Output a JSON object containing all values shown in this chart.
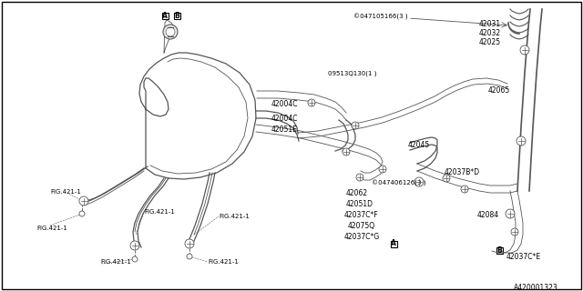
{
  "bg_color": "#ffffff",
  "border_color": "#000000",
  "line_color": "#555555",
  "fig_width": 6.4,
  "fig_height": 3.2,
  "dpi": 100,
  "diagram_id": "A420001323",
  "labels": {
    "part_42031": "42031",
    "part_42032": "42032",
    "part_42025": "42025",
    "part_42065": "42065",
    "part_047105166": "©047105166(3 )",
    "part_09513Q130": "09513Q130(1 )",
    "part_42004C_1": "42004C",
    "part_42004C_2": "42004C",
    "part_42051E": "42051E",
    "part_42045": "42045",
    "part_047406126": "©047406126(3 )",
    "part_42037BD": "42037B*D",
    "part_42062": "42062",
    "part_42051D": "42051D",
    "part_42037CF": "42037C*F",
    "part_42075Q": "42075Q",
    "part_42037CG": "42037C*G",
    "part_42084": "42084",
    "part_42037CE": "42037C*E",
    "fig421_1": "FIG.421-1"
  }
}
